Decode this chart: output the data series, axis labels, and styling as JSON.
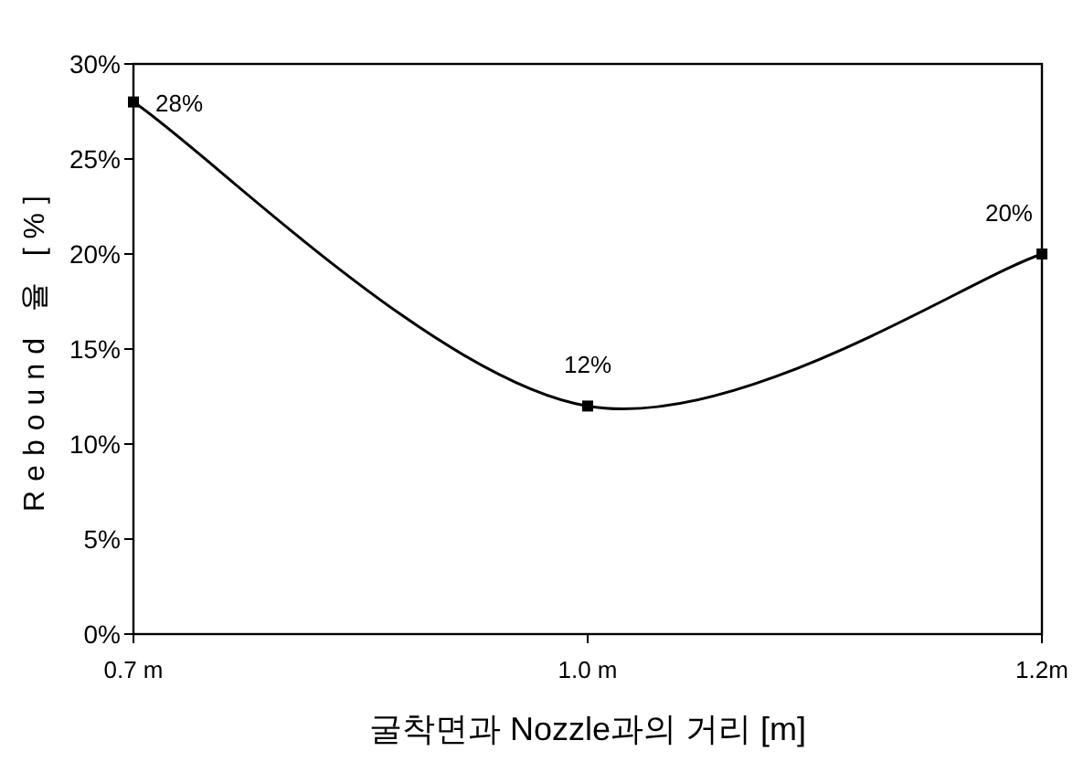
{
  "chart_data": {
    "type": "line",
    "xlabel": "굴착면과 Nozzle과의 거리 [m]",
    "ylabel": "Rebound 율 [%]",
    "categories": [
      "0.7 m",
      "1.0 m",
      "1.2m"
    ],
    "values": [
      28,
      12,
      20
    ],
    "color": "#000000",
    "marker": "square",
    "data_labels": true,
    "value_labels": [
      "28%",
      "12%",
      "20%"
    ],
    "ylim": [
      0,
      30
    ],
    "yticks": [
      {
        "value": 0,
        "label": "0%"
      },
      {
        "value": 5,
        "label": "5%"
      },
      {
        "value": 10,
        "label": "10%"
      },
      {
        "value": 15,
        "label": "15%"
      },
      {
        "value": 20,
        "label": "20%"
      },
      {
        "value": 25,
        "label": "25%"
      },
      {
        "value": 30,
        "label": "30%"
      }
    ],
    "grid": false
  }
}
